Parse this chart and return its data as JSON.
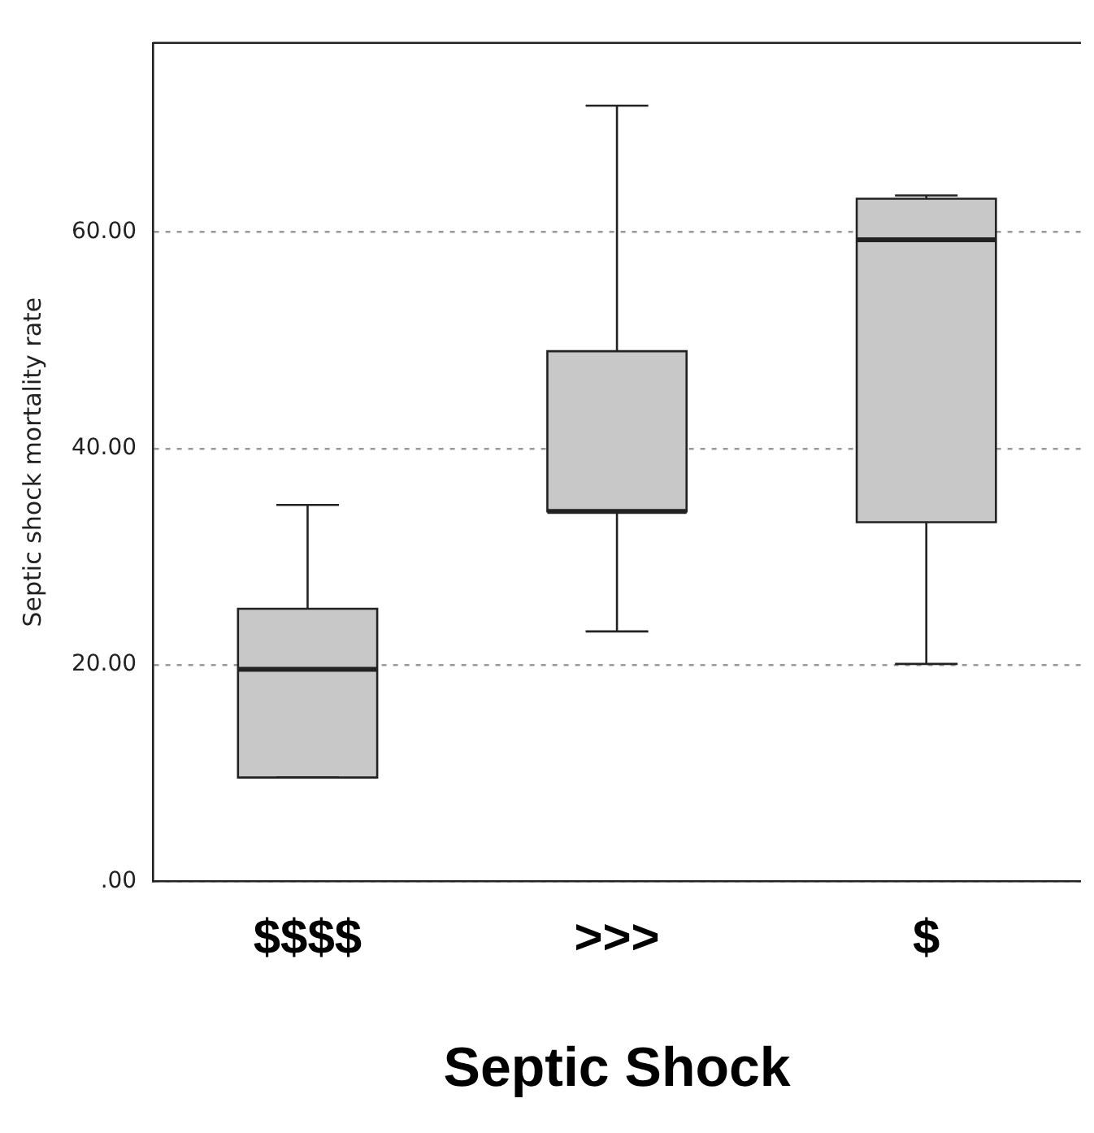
{
  "chart_data": {
    "type": "box",
    "categories": [
      "$$$$",
      ">>>",
      "$"
    ],
    "xlabel": "Septic Shock",
    "ylabel": "Septic shock mortality rate",
    "color": "#c8c8c8",
    "boxes": [
      {
        "low": 9.6,
        "q1": 9.6,
        "median": 19.6,
        "q3": 25.2,
        "high": 34.8
      },
      {
        "low": 23.1,
        "q1": 34.2,
        "median": 34.2,
        "q3": 49.0,
        "high": 71.7
      },
      {
        "low": 20.1,
        "q1": 33.2,
        "median": 59.3,
        "q3": 63.1,
        "high": 63.4
      }
    ],
    "ylim": [
      0,
      77.5
    ],
    "yticks": [
      {
        "value": 0,
        "label": ".00"
      },
      {
        "value": 20,
        "label": "20.00"
      },
      {
        "value": 40,
        "label": "40.00"
      },
      {
        "value": 60,
        "label": "60.00"
      }
    ],
    "grid": "y",
    "legend": false
  }
}
